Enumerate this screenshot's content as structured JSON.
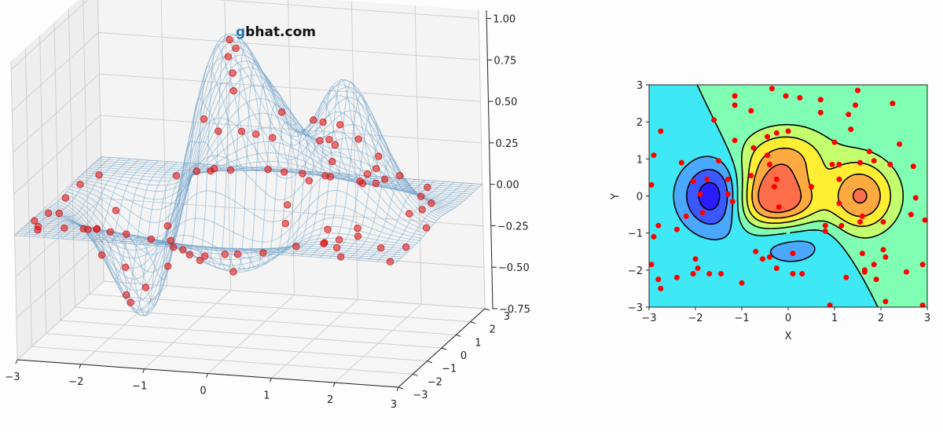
{
  "watermark": {
    "g": "g",
    "rest": "bhat.com",
    "g_color": "#1f77b4",
    "rest_color": "#111111"
  },
  "chart_data": [
    {
      "type": "surface3d",
      "style": "wireframe with scatter points",
      "surface_function": "z = (1 - x/2 + x^5 + y^3) * exp(-x^2 - y^2)",
      "x_range": [
        -3,
        3
      ],
      "y_range": [
        -3,
        3
      ],
      "z_range": [
        -0.75,
        1.05
      ],
      "x_ticks": [
        "−3",
        "−2",
        "−1",
        "0",
        "1",
        "2",
        "3"
      ],
      "y_ticks": [
        "−3",
        "−2",
        "−1",
        "0",
        "1",
        "2",
        "3"
      ],
      "z_ticks": [
        "−0.75",
        "−0.50",
        "−0.25",
        "0.00",
        "0.25",
        "0.50",
        "0.75",
        "1.00"
      ],
      "wire_color": "#6fa0c8",
      "point_color": "#e01a1a",
      "grid": true
    },
    {
      "type": "contour",
      "surface_function": "z = (1 - x/2 + x^5 + y^3) * exp(-x^2 - y^2)",
      "x_range": [
        -3,
        3
      ],
      "y_range": [
        -3,
        3
      ],
      "levels": [
        -0.6,
        -0.4,
        -0.2,
        0.0,
        0.2,
        0.4,
        0.6,
        0.8
      ],
      "level_colors": [
        "#2a1cff",
        "#3b58ff",
        "#4aa8ff",
        "#3ee8f5",
        "#80ffb4",
        "#c4ff6e",
        "#ffee33",
        "#ffaa40",
        "#ff6e4a"
      ],
      "x_ticks": [
        "−3",
        "−2",
        "−1",
        "0",
        "1",
        "2",
        "3"
      ],
      "y_ticks": [
        "−3",
        "−2",
        "−1",
        "0",
        "1",
        "2",
        "3"
      ],
      "xlabel": "X",
      "ylabel": "Y",
      "point_color": "#ff0000",
      "points": [
        [
          -2.9,
          1.1
        ],
        [
          -2.75,
          1.75
        ],
        [
          -2.95,
          0.3
        ],
        [
          -2.8,
          -0.8
        ],
        [
          -2.9,
          -1.1
        ],
        [
          -2.8,
          -2.25
        ],
        [
          -2.75,
          -2.5
        ],
        [
          -2.95,
          -1.85
        ],
        [
          -2.4,
          -0.9
        ],
        [
          -2.2,
          -0.55
        ],
        [
          -2.3,
          0.9
        ],
        [
          -2.05,
          0.4
        ],
        [
          -1.9,
          0.05
        ],
        [
          -1.85,
          -0.45
        ],
        [
          -2.0,
          -1.7
        ],
        [
          -2.05,
          -2.1
        ],
        [
          -2.4,
          -2.2
        ],
        [
          -1.95,
          -1.95
        ],
        [
          -1.7,
          -2.1
        ],
        [
          -1.45,
          -2.1
        ],
        [
          -1.0,
          -2.35
        ],
        [
          -1.6,
          2.05
        ],
        [
          -1.75,
          0.45
        ],
        [
          -1.5,
          0.95
        ],
        [
          -1.3,
          0.45
        ],
        [
          -1.3,
          0.05
        ],
        [
          -1.2,
          -0.15
        ],
        [
          -1.15,
          1.5
        ],
        [
          -1.15,
          2.45
        ],
        [
          -1.15,
          2.7
        ],
        [
          -0.8,
          2.3
        ],
        [
          -0.75,
          1.3
        ],
        [
          -0.45,
          1.6
        ],
        [
          -0.35,
          2.9
        ],
        [
          -0.05,
          2.7
        ],
        [
          0.25,
          2.65
        ],
        [
          -0.25,
          1.7
        ],
        [
          0.0,
          1.75
        ],
        [
          -0.45,
          1.1
        ],
        [
          -0.4,
          0.85
        ],
        [
          -0.8,
          0.55
        ],
        [
          -0.7,
          -1.5
        ],
        [
          -0.55,
          -1.7
        ],
        [
          -0.4,
          -1.65
        ],
        [
          -0.25,
          -1.95
        ],
        [
          0.1,
          -1.55
        ],
        [
          0.1,
          -2.1
        ],
        [
          0.3,
          -2.1
        ],
        [
          -0.25,
          0.45
        ],
        [
          -0.2,
          -0.3
        ],
        [
          -0.3,
          0.25
        ],
        [
          0.5,
          0.25
        ],
        [
          0.7,
          2.6
        ],
        [
          0.7,
          2.25
        ],
        [
          0.8,
          -0.8
        ],
        [
          0.8,
          -0.95
        ],
        [
          0.9,
          -2.95
        ],
        [
          0.95,
          0.85
        ],
        [
          1.0,
          1.45
        ],
        [
          1.1,
          0.85
        ],
        [
          1.1,
          0.45
        ],
        [
          1.1,
          -0.2
        ],
        [
          1.15,
          -0.8
        ],
        [
          1.25,
          -2.2
        ],
        [
          1.3,
          2.2
        ],
        [
          1.35,
          1.8
        ],
        [
          1.45,
          2.45
        ],
        [
          1.5,
          2.85
        ],
        [
          1.55,
          0.9
        ],
        [
          1.55,
          -0.7
        ],
        [
          1.6,
          -0.55
        ],
        [
          1.6,
          -1.55
        ],
        [
          1.65,
          -2.0
        ],
        [
          1.65,
          -2.05
        ],
        [
          1.75,
          1.2
        ],
        [
          1.85,
          0.95
        ],
        [
          1.85,
          -1.85
        ],
        [
          1.9,
          -2.25
        ],
        [
          2.05,
          -0.7
        ],
        [
          2.05,
          -1.45
        ],
        [
          2.1,
          -2.85
        ],
        [
          2.1,
          -1.65
        ],
        [
          2.25,
          2.5
        ],
        [
          2.2,
          0.85
        ],
        [
          2.4,
          1.4
        ],
        [
          2.55,
          -2.05
        ],
        [
          2.65,
          -0.5
        ],
        [
          2.7,
          0.8
        ],
        [
          2.9,
          -1.85
        ],
        [
          2.95,
          -0.65
        ],
        [
          2.9,
          -2.95
        ],
        [
          2.75,
          -0.05
        ]
      ]
    }
  ]
}
